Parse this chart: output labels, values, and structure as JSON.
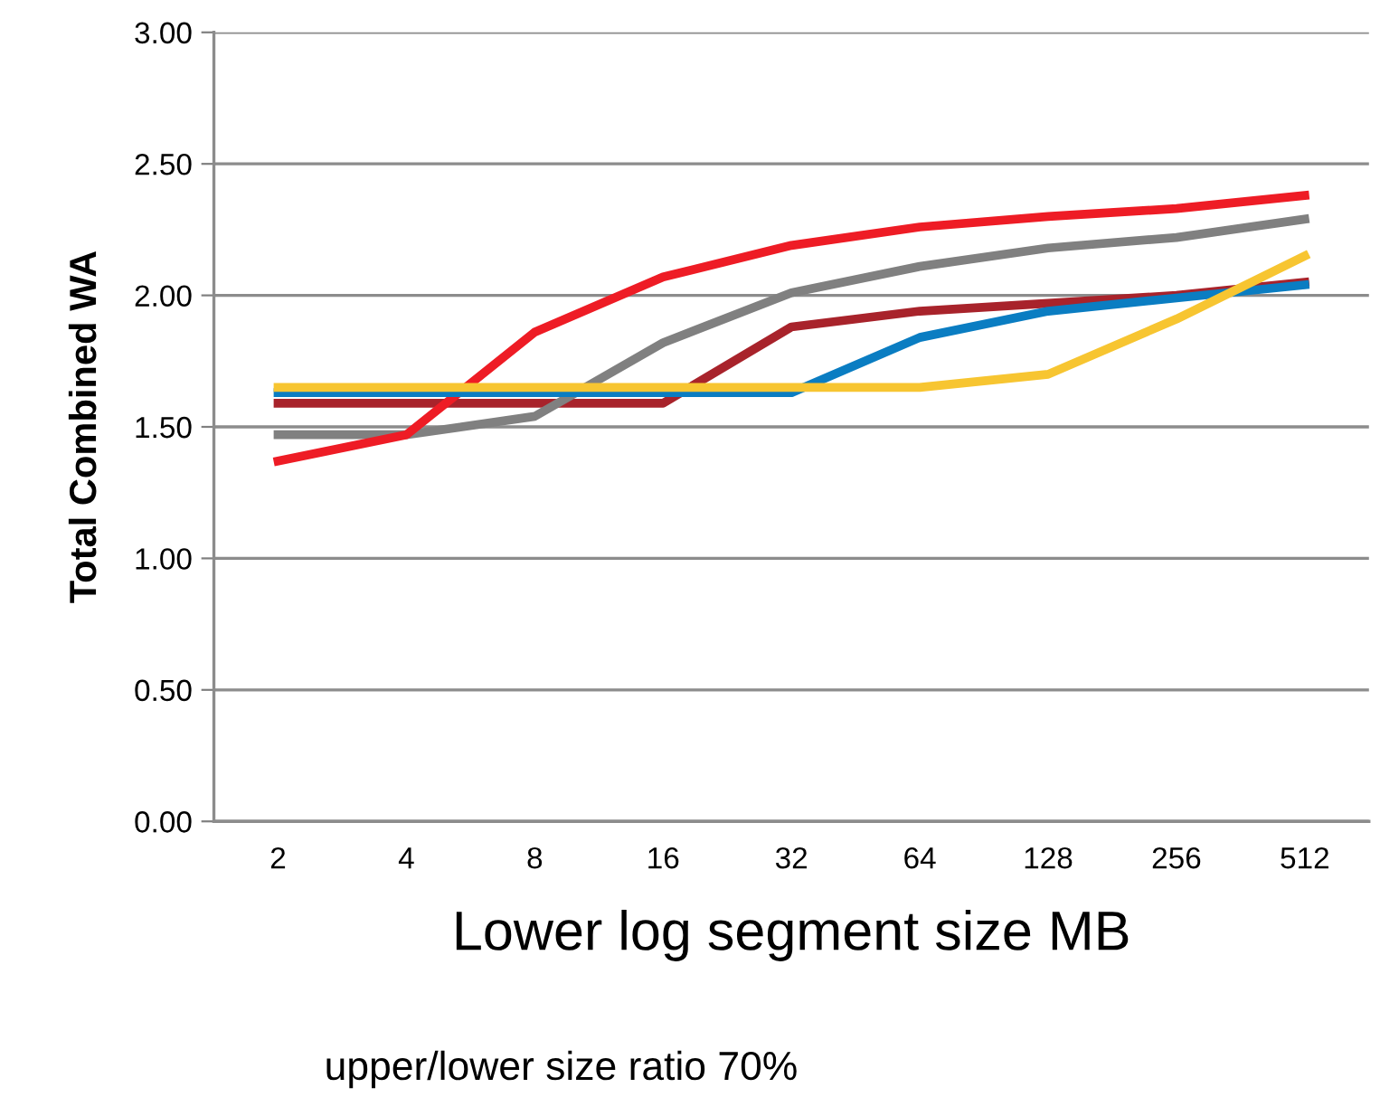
{
  "chart_data": {
    "type": "line",
    "xlabel": "Lower log segment size MB",
    "ylabel": "Total Combined WA",
    "categories": [
      "2",
      "4",
      "8",
      "16",
      "32",
      "64",
      "128",
      "256",
      "512"
    ],
    "series": [
      {
        "color": "#a8232b",
        "values": [
          1.59,
          1.59,
          1.59,
          1.59,
          1.88,
          1.94,
          1.97,
          2.0,
          2.05
        ]
      },
      {
        "color": "#808080",
        "values": [
          1.47,
          1.47,
          1.54,
          1.82,
          2.01,
          2.11,
          2.18,
          2.22,
          2.29
        ]
      },
      {
        "color": "#ee1c25",
        "values": [
          1.37,
          1.47,
          1.86,
          2.07,
          2.19,
          2.26,
          2.3,
          2.33,
          2.38
        ]
      },
      {
        "color": "#0a7dc2",
        "values": [
          1.63,
          1.63,
          1.63,
          1.63,
          1.63,
          1.84,
          1.94,
          1.99,
          2.04
        ]
      },
      {
        "color": "#f7c531",
        "values": [
          1.65,
          1.65,
          1.65,
          1.65,
          1.65,
          1.65,
          1.7,
          1.91,
          2.15
        ]
      }
    ],
    "ylim": [
      0,
      3
    ],
    "yticks": [
      {
        "value": 0,
        "label": "0.00"
      },
      {
        "value": 0.5,
        "label": "0.50"
      },
      {
        "value": 1,
        "label": "1.00"
      },
      {
        "value": 1.5,
        "label": "1.50"
      },
      {
        "value": 2,
        "label": "2.00"
      },
      {
        "value": 2.5,
        "label": "2.50"
      },
      {
        "value": 3,
        "label": "3.00"
      }
    ],
    "grid": "y",
    "legend": false,
    "marker": "none",
    "line_style": "solid",
    "annotations": [
      "upper/lower size ratio 70%"
    ]
  }
}
